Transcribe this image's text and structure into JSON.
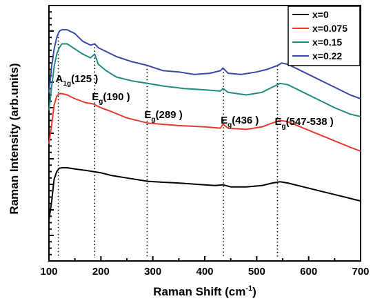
{
  "chart_data": {
    "type": "line",
    "title": "",
    "xlabel": "Raman Shift (cm",
    "xlabel_sup": "-1",
    "xlabel_end": ")",
    "ylabel": "Raman Intensity (arb.units)",
    "xlim": [
      100,
      700
    ],
    "ylim": [
      0,
      10
    ],
    "x_ticks": [
      "100",
      "200",
      "300",
      "400",
      "500",
      "600",
      "700"
    ],
    "y_tick_labels_shown": false,
    "grid": false,
    "legend_position": "top-right",
    "series": [
      {
        "name": "x=0",
        "color": "#000000",
        "points": [
          [
            100,
            1.6
          ],
          [
            105,
            2.3
          ],
          [
            110,
            3.2
          ],
          [
            115,
            3.5
          ],
          [
            120,
            3.63
          ],
          [
            125,
            3.65
          ],
          [
            135,
            3.65
          ],
          [
            150,
            3.6
          ],
          [
            170,
            3.55
          ],
          [
            185,
            3.5
          ],
          [
            200,
            3.45
          ],
          [
            220,
            3.35
          ],
          [
            250,
            3.25
          ],
          [
            280,
            3.15
          ],
          [
            290,
            3.12
          ],
          [
            320,
            3.08
          ],
          [
            350,
            3.05
          ],
          [
            400,
            2.98
          ],
          [
            420,
            2.95
          ],
          [
            435,
            2.98
          ],
          [
            450,
            2.9
          ],
          [
            480,
            2.9
          ],
          [
            510,
            2.95
          ],
          [
            530,
            3.05
          ],
          [
            545,
            3.1
          ],
          [
            560,
            3.05
          ],
          [
            590,
            2.9
          ],
          [
            620,
            2.75
          ],
          [
            650,
            2.6
          ],
          [
            680,
            2.45
          ],
          [
            700,
            2.35
          ]
        ]
      },
      {
        "name": "x=0.075",
        "color": "#e8392f",
        "points": [
          [
            100,
            4.6
          ],
          [
            105,
            5.3
          ],
          [
            110,
            6.1
          ],
          [
            115,
            6.45
          ],
          [
            120,
            6.55
          ],
          [
            125,
            6.55
          ],
          [
            135,
            6.5
          ],
          [
            150,
            6.35
          ],
          [
            170,
            6.2
          ],
          [
            185,
            6.15
          ],
          [
            200,
            6.0
          ],
          [
            220,
            5.85
          ],
          [
            250,
            5.6
          ],
          [
            280,
            5.45
          ],
          [
            290,
            5.4
          ],
          [
            320,
            5.35
          ],
          [
            350,
            5.3
          ],
          [
            400,
            5.25
          ],
          [
            430,
            5.2
          ],
          [
            435,
            5.35
          ],
          [
            445,
            5.2
          ],
          [
            480,
            5.15
          ],
          [
            510,
            5.25
          ],
          [
            530,
            5.4
          ],
          [
            545,
            5.5
          ],
          [
            560,
            5.45
          ],
          [
            590,
            5.2
          ],
          [
            620,
            4.95
          ],
          [
            650,
            4.7
          ],
          [
            680,
            4.45
          ],
          [
            700,
            4.3
          ]
        ]
      },
      {
        "name": "x=0.15",
        "color": "#1f8a80",
        "points": [
          [
            100,
            5.9
          ],
          [
            105,
            6.8
          ],
          [
            110,
            7.6
          ],
          [
            115,
            8.1
          ],
          [
            120,
            8.35
          ],
          [
            125,
            8.5
          ],
          [
            135,
            8.5
          ],
          [
            150,
            8.3
          ],
          [
            165,
            8.1
          ],
          [
            180,
            7.95
          ],
          [
            188,
            8.1
          ],
          [
            195,
            7.7
          ],
          [
            210,
            7.45
          ],
          [
            230,
            7.2
          ],
          [
            260,
            7.05
          ],
          [
            290,
            6.95
          ],
          [
            320,
            6.85
          ],
          [
            360,
            6.75
          ],
          [
            400,
            6.7
          ],
          [
            430,
            6.65
          ],
          [
            435,
            6.75
          ],
          [
            445,
            6.6
          ],
          [
            480,
            6.5
          ],
          [
            510,
            6.6
          ],
          [
            530,
            6.8
          ],
          [
            545,
            6.95
          ],
          [
            560,
            6.9
          ],
          [
            590,
            6.6
          ],
          [
            620,
            6.3
          ],
          [
            650,
            6.0
          ],
          [
            680,
            5.75
          ],
          [
            700,
            5.65
          ]
        ]
      },
      {
        "name": "x=0.22",
        "color": "#3a46a8",
        "points": [
          [
            100,
            6.6
          ],
          [
            105,
            7.6
          ],
          [
            110,
            8.3
          ],
          [
            115,
            8.75
          ],
          [
            120,
            9.0
          ],
          [
            125,
            9.05
          ],
          [
            135,
            9.05
          ],
          [
            150,
            8.9
          ],
          [
            165,
            8.6
          ],
          [
            180,
            8.45
          ],
          [
            188,
            8.5
          ],
          [
            195,
            8.35
          ],
          [
            210,
            8.2
          ],
          [
            230,
            8.0
          ],
          [
            260,
            7.8
          ],
          [
            290,
            7.65
          ],
          [
            320,
            7.45
          ],
          [
            350,
            7.4
          ],
          [
            380,
            7.3
          ],
          [
            410,
            7.35
          ],
          [
            430,
            7.45
          ],
          [
            435,
            7.55
          ],
          [
            445,
            7.35
          ],
          [
            470,
            7.3
          ],
          [
            500,
            7.4
          ],
          [
            520,
            7.5
          ],
          [
            540,
            7.65
          ],
          [
            548,
            7.75
          ],
          [
            560,
            7.7
          ],
          [
            590,
            7.4
          ],
          [
            620,
            7.1
          ],
          [
            650,
            6.8
          ],
          [
            680,
            6.5
          ],
          [
            700,
            6.35
          ]
        ]
      }
    ],
    "annotations": [
      {
        "main": "A",
        "sub": "1g",
        "rest": "(125 )",
        "x": 118
      },
      {
        "main": "E",
        "sub": "g",
        "rest": "(190 )",
        "x": 188
      },
      {
        "main": "E",
        "sub": "g",
        "rest": "(289 )",
        "x": 289
      },
      {
        "main": "E",
        "sub": "g",
        "rest": "(436 )",
        "x": 436
      },
      {
        "main": "E",
        "sub": "g",
        "rest": "(547-538 )",
        "x": 540
      }
    ]
  }
}
